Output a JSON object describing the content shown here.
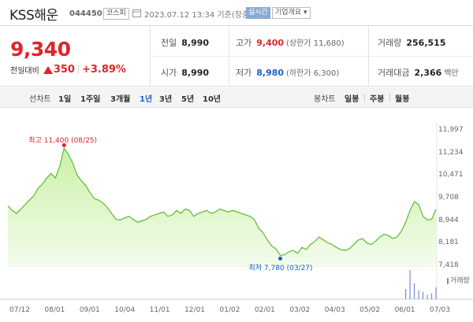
{
  "header": {
    "name": "KSS해운",
    "code": "044450",
    "market": "코스피",
    "timestamp": "2023.07.12 13:34 기준(장중)",
    "realtime": "실시간",
    "company_info": "기업개요"
  },
  "summary": {
    "price": "9,340",
    "change_label": "전일대비",
    "change": "350",
    "change_pct": "+3.89%",
    "prev_close_label": "전일",
    "prev_close": "8,990",
    "open_label": "시가",
    "open": "8,990",
    "high_label": "고가",
    "high": "9,400",
    "upper_limit": "(상한가 11,680)",
    "low_label": "저가",
    "low": "8,980",
    "lower_limit": "(하한가 6,300)",
    "volume_label": "거래량",
    "volume": "256,515",
    "amount_label": "거래대금",
    "amount": "2,366",
    "amount_unit": "백만"
  },
  "periodbar": {
    "line_label": "선차트",
    "line_tabs": [
      "1일",
      "1주일",
      "3개월",
      "1년",
      "3년",
      "5년",
      "10년"
    ],
    "active_line_tab": "1년",
    "candle_label": "봉차트",
    "candle_tabs": [
      "일봉",
      "주봉",
      "월봉"
    ]
  },
  "chart_data": {
    "type": "area",
    "y_ticks": [
      "11,997",
      "11,234",
      "10,471",
      "9,708",
      "8,944",
      "8,181",
      "7,418"
    ],
    "x_ticks": [
      "07/12",
      "08/01",
      "09/01",
      "10/04",
      "11/01",
      "12/01",
      "01/02",
      "02/01",
      "03/02",
      "04/03",
      "05/02",
      "06/01",
      "07/03"
    ],
    "ylim": [
      7418,
      11997
    ],
    "series": [
      {
        "values": [
          9450,
          9300,
          9200,
          9350,
          9500,
          9650,
          9800,
          10050,
          10200,
          10400,
          10550,
          10400,
          10800,
          11400,
          11200,
          10900,
          10500,
          10300,
          10150,
          9900,
          9700,
          9650,
          9550,
          9400,
          9200,
          9000,
          8980,
          9050,
          9100,
          9000,
          8900,
          8950,
          9000,
          9100,
          9150,
          9200,
          9250,
          9100,
          9150,
          9300,
          9200,
          9350,
          9300,
          9100,
          9200,
          9250,
          9300,
          9200,
          9250,
          9350,
          9300,
          9250,
          9300,
          9250,
          9200,
          9150,
          9100,
          9000,
          8700,
          8550,
          8300,
          8100,
          8000,
          7780,
          7800,
          7900,
          7950,
          7850,
          8050,
          7980,
          8150,
          8250,
          8400,
          8300,
          8200,
          8150,
          8050,
          7980,
          7950,
          8000,
          8150,
          8300,
          8350,
          8200,
          8150,
          8250,
          8400,
          8500,
          8450,
          8350,
          8400,
          8600,
          8900,
          9300,
          9600,
          9500,
          9100,
          8980,
          9000,
          9340
        ]
      }
    ],
    "volume": [
      0,
      0,
      0,
      0,
      0,
      0,
      0,
      0,
      0,
      0,
      0,
      0,
      0,
      0,
      0,
      0,
      0,
      0,
      0,
      0,
      0,
      0,
      0,
      0,
      0,
      0,
      0,
      0,
      0,
      0,
      0,
      0,
      0,
      0,
      0,
      0,
      0,
      0,
      0,
      0,
      0,
      0,
      0,
      0,
      0,
      0,
      0,
      0,
      0,
      0,
      0,
      0,
      0,
      0,
      0,
      0,
      0,
      0,
      0,
      0,
      0,
      0,
      0,
      0,
      0,
      0,
      0,
      0,
      0,
      0,
      0,
      0,
      0,
      0,
      0,
      0,
      0,
      0,
      0,
      0,
      0,
      0,
      0,
      0,
      0,
      0,
      0,
      0,
      0,
      0,
      0,
      0,
      0.35,
      1.0,
      0.55,
      0.3,
      0.25,
      0.15,
      0.2,
      0.4
    ],
    "high_annotation": "최고 11,400 (08/25)",
    "low_annotation": "최저 7,780 (03/27)",
    "volume_legend": "거래량",
    "colors": {
      "area_fill": "#c9f0a8",
      "line": "#5cbb2e",
      "high": "#e0242a",
      "low": "#1a62c7",
      "volume": "#7c8bd0"
    }
  }
}
